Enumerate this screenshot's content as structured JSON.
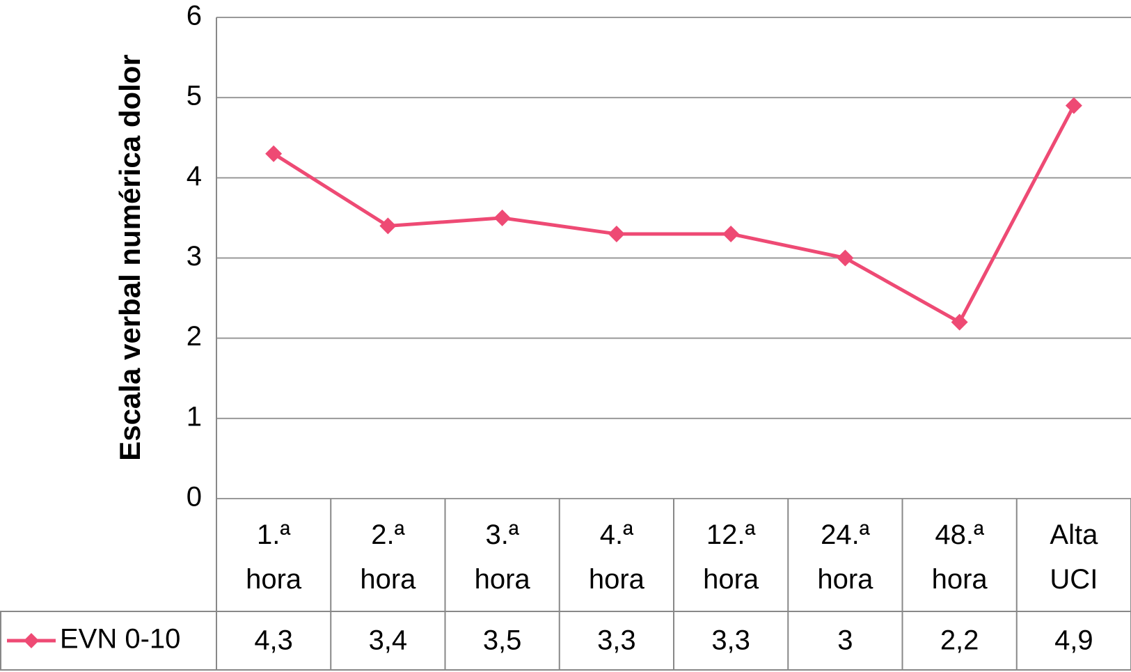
{
  "chart_data": {
    "type": "line",
    "y_label": "Escala verbal numérica dolor",
    "categories": [
      "1.ª hora",
      "2.ª hora",
      "3.ª hora",
      "4.ª hora",
      "12.ª hora",
      "24.ª hora",
      "48.ª hora",
      "Alta UCI"
    ],
    "series": [
      {
        "name": "EVN 0-10",
        "color": "#ee4a74",
        "values": [
          4.3,
          3.4,
          3.5,
          3.3,
          3.3,
          3,
          2.2,
          4.9
        ],
        "value_labels": [
          "4,3",
          "3,4",
          "3,5",
          "3,3",
          "3,3",
          "3",
          "2,2",
          "4,9"
        ]
      }
    ],
    "ylim": [
      0,
      6
    ],
    "yticks": [
      0,
      1,
      2,
      3,
      4,
      5,
      6
    ],
    "grid": true,
    "data_table": true
  }
}
